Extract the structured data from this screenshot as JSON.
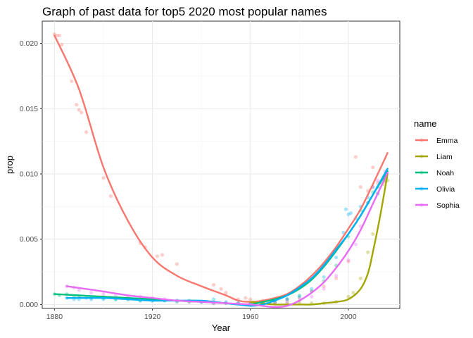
{
  "chart_data": {
    "type": "scatter",
    "title": "Graph of past data for top5 2020 most popular names",
    "xlabel": "Year",
    "ylabel": "prop",
    "xlim": [
      1875,
      2021
    ],
    "ylim": [
      -0.0003,
      0.0217
    ],
    "x_ticks": [
      1880,
      1920,
      1960,
      2000
    ],
    "y_ticks": [
      0.0,
      0.005,
      0.01,
      0.015,
      0.02
    ],
    "y_tick_labels": [
      "0.000",
      "0.005",
      "0.010",
      "0.015",
      "0.020"
    ],
    "grid": true,
    "legend_title": "name",
    "legend_position": "right",
    "series": [
      {
        "name": "Emma",
        "color": "#F8766D",
        "points": [
          [
            1880,
            0.0207
          ],
          [
            1881,
            0.0206
          ],
          [
            1882,
            0.0206
          ],
          [
            1883,
            0.0199
          ],
          [
            1887,
            0.0171
          ],
          [
            1889,
            0.0153
          ],
          [
            1890,
            0.0149
          ],
          [
            1891,
            0.0147
          ],
          [
            1893,
            0.0132
          ],
          [
            1900,
            0.0097
          ],
          [
            1903,
            0.0083
          ],
          [
            1915,
            0.0047
          ],
          [
            1917,
            0.0044
          ],
          [
            1922,
            0.0037
          ],
          [
            1924,
            0.0038
          ],
          [
            1930,
            0.0031
          ],
          [
            1945,
            0.0015
          ],
          [
            1948,
            0.0012
          ],
          [
            1950,
            0.0009
          ],
          [
            1955,
            0.0004
          ],
          [
            1958,
            0.0005
          ],
          [
            1960,
            0.0004
          ],
          [
            1965,
            0.0003
          ],
          [
            1970,
            0.0003
          ],
          [
            1975,
            0.0004
          ],
          [
            1980,
            0.0005
          ],
          [
            1985,
            0.001
          ],
          [
            1990,
            0.0014
          ],
          [
            1995,
            0.002
          ],
          [
            2000,
            0.0033
          ],
          [
            2003,
            0.0113
          ],
          [
            2005,
            0.009
          ],
          [
            2008,
            0.0087
          ],
          [
            2010,
            0.0105
          ],
          [
            2012,
            0.0093
          ],
          [
            2015,
            0.0094
          ]
        ],
        "trend": [
          [
            1880,
            0.0206
          ],
          [
            1890,
            0.0165
          ],
          [
            1900,
            0.0105
          ],
          [
            1910,
            0.0064
          ],
          [
            1920,
            0.0036
          ],
          [
            1930,
            0.0022
          ],
          [
            1940,
            0.0014
          ],
          [
            1950,
            0.0007
          ],
          [
            1955,
            0.0003
          ],
          [
            1960,
            0.0002
          ],
          [
            1965,
            0.0003
          ],
          [
            1970,
            0.0005
          ],
          [
            1975,
            0.0008
          ],
          [
            1980,
            0.0014
          ],
          [
            1985,
            0.0022
          ],
          [
            1990,
            0.0032
          ],
          [
            1995,
            0.0044
          ],
          [
            2000,
            0.0058
          ],
          [
            2005,
            0.0073
          ],
          [
            2010,
            0.0092
          ],
          [
            2016,
            0.0116
          ]
        ]
      },
      {
        "name": "Liam",
        "color": "#A3A500",
        "points": [
          [
            1965,
            0.0001
          ],
          [
            1967,
            0.0001
          ],
          [
            1970,
            0.0001
          ],
          [
            1975,
            0.0001
          ],
          [
            1980,
            0.0001
          ],
          [
            1985,
            0.0001
          ],
          [
            1990,
            0.0001
          ],
          [
            1995,
            0.0002
          ],
          [
            2000,
            0.0006
          ],
          [
            2002,
            0.0009
          ],
          [
            2005,
            0.002
          ],
          [
            2008,
            0.004
          ],
          [
            2010,
            0.0054
          ],
          [
            2012,
            0.0085
          ],
          [
            2014,
            0.0092
          ],
          [
            2015,
            0.0097
          ],
          [
            2016,
            0.0095
          ]
        ],
        "trend": [
          [
            1960,
            0.0002
          ],
          [
            1965,
            0.0001
          ],
          [
            1970,
            0.0
          ],
          [
            1975,
            0.0
          ],
          [
            1980,
            0.0
          ],
          [
            1985,
            0.0
          ],
          [
            1990,
            0.0001
          ],
          [
            1995,
            0.0002
          ],
          [
            2000,
            0.0004
          ],
          [
            2005,
            0.0012
          ],
          [
            2008,
            0.0024
          ],
          [
            2010,
            0.004
          ],
          [
            2013,
            0.0068
          ],
          [
            2016,
            0.01
          ]
        ]
      },
      {
        "name": "Noah",
        "color": "#00BF7D",
        "points": [
          [
            1880,
            0.0008
          ],
          [
            1882,
            0.0007
          ],
          [
            1885,
            0.0008
          ],
          [
            1888,
            0.0006
          ],
          [
            1890,
            0.0006
          ],
          [
            1895,
            0.0005
          ],
          [
            1900,
            0.0005
          ],
          [
            1905,
            0.0004
          ],
          [
            1910,
            0.0004
          ],
          [
            1915,
            0.0003
          ],
          [
            1920,
            0.0003
          ],
          [
            1925,
            0.0003
          ],
          [
            1930,
            0.0002
          ],
          [
            1935,
            0.0002
          ],
          [
            1940,
            0.0002
          ],
          [
            1945,
            0.0001
          ],
          [
            1950,
            0.0001
          ],
          [
            1955,
            0.0001
          ],
          [
            1960,
            0.0001
          ],
          [
            1965,
            0.0001
          ],
          [
            1970,
            0.0002
          ],
          [
            1975,
            0.0004
          ],
          [
            1980,
            0.0007
          ],
          [
            1985,
            0.001
          ],
          [
            1990,
            0.0018
          ],
          [
            1995,
            0.003
          ],
          [
            2000,
            0.0052
          ],
          [
            2005,
            0.0072
          ],
          [
            2008,
            0.0078
          ],
          [
            2010,
            0.0086
          ],
          [
            2012,
            0.009
          ],
          [
            2015,
            0.0095
          ]
        ],
        "trend": [
          [
            1880,
            0.0008
          ],
          [
            1890,
            0.0007
          ],
          [
            1900,
            0.0006
          ],
          [
            1910,
            0.0005
          ],
          [
            1920,
            0.0004
          ],
          [
            1930,
            0.0003
          ],
          [
            1940,
            0.0002
          ],
          [
            1950,
            0.0001
          ],
          [
            1955,
            0.0
          ],
          [
            1960,
            0.0
          ],
          [
            1965,
            0.0002
          ],
          [
            1970,
            0.0004
          ],
          [
            1975,
            0.0007
          ],
          [
            1980,
            0.0012
          ],
          [
            1985,
            0.0019
          ],
          [
            1990,
            0.0029
          ],
          [
            1995,
            0.0041
          ],
          [
            2000,
            0.0054
          ],
          [
            2005,
            0.0068
          ],
          [
            2010,
            0.0084
          ],
          [
            2016,
            0.0102
          ]
        ]
      },
      {
        "name": "Olivia",
        "color": "#00B0F6",
        "points": [
          [
            1885,
            0.0005
          ],
          [
            1888,
            0.0004
          ],
          [
            1890,
            0.0004
          ],
          [
            1893,
            0.0005
          ],
          [
            1895,
            0.0004
          ],
          [
            1900,
            0.0004
          ],
          [
            1905,
            0.0004
          ],
          [
            1910,
            0.0004
          ],
          [
            1915,
            0.0003
          ],
          [
            1920,
            0.0003
          ],
          [
            1925,
            0.0003
          ],
          [
            1930,
            0.0003
          ],
          [
            1935,
            0.0003
          ],
          [
            1940,
            0.0002
          ],
          [
            1945,
            0.0004
          ],
          [
            1950,
            0.0002
          ],
          [
            1955,
            0.0001
          ],
          [
            1960,
            0.0001
          ],
          [
            1965,
            0.0001
          ],
          [
            1970,
            0.0003
          ],
          [
            1975,
            0.0004
          ],
          [
            1980,
            0.0006
          ],
          [
            1985,
            0.0012
          ],
          [
            1990,
            0.0021
          ],
          [
            1995,
            0.0036
          ],
          [
            1998,
            0.0055
          ],
          [
            1999,
            0.0073
          ],
          [
            2000,
            0.0069
          ],
          [
            2001,
            0.007
          ],
          [
            2003,
            0.0066
          ],
          [
            2005,
            0.0075
          ],
          [
            2008,
            0.0082
          ],
          [
            2010,
            0.009
          ],
          [
            2012,
            0.0085
          ],
          [
            2015,
            0.0099
          ]
        ],
        "trend": [
          [
            1885,
            0.0005
          ],
          [
            1900,
            0.0005
          ],
          [
            1910,
            0.0004
          ],
          [
            1920,
            0.0003
          ],
          [
            1930,
            0.0003
          ],
          [
            1940,
            0.0003
          ],
          [
            1945,
            0.0002
          ],
          [
            1950,
            0.0001
          ],
          [
            1955,
            0.0
          ],
          [
            1960,
            -0.0001
          ],
          [
            1965,
            0.0
          ],
          [
            1970,
            0.0003
          ],
          [
            1975,
            0.0007
          ],
          [
            1980,
            0.0013
          ],
          [
            1985,
            0.002
          ],
          [
            1990,
            0.003
          ],
          [
            1995,
            0.0042
          ],
          [
            2000,
            0.0054
          ],
          [
            2005,
            0.0068
          ],
          [
            2010,
            0.0084
          ],
          [
            2016,
            0.0104
          ]
        ]
      },
      {
        "name": "Sophia",
        "color": "#E76BF3",
        "points": [
          [
            1885,
            0.0014
          ],
          [
            1888,
            0.0013
          ],
          [
            1890,
            0.0011
          ],
          [
            1895,
            0.0009
          ],
          [
            1900,
            0.0008
          ],
          [
            1905,
            0.0007
          ],
          [
            1910,
            0.0006
          ],
          [
            1915,
            0.0006
          ],
          [
            1920,
            0.0005
          ],
          [
            1925,
            0.0004
          ],
          [
            1930,
            0.0003
          ],
          [
            1935,
            0.0002
          ],
          [
            1940,
            0.0002
          ],
          [
            1945,
            0.0001
          ],
          [
            1950,
            0.0001
          ],
          [
            1955,
            0.0001
          ],
          [
            1960,
            0.0001
          ],
          [
            1965,
            0.0001
          ],
          [
            1970,
            0.0001
          ],
          [
            1975,
            0.0002
          ],
          [
            1980,
            0.0003
          ],
          [
            1985,
            0.0006
          ],
          [
            1990,
            0.0012
          ],
          [
            1995,
            0.0022
          ],
          [
            2000,
            0.0034
          ],
          [
            2003,
            0.0046
          ],
          [
            2005,
            0.006
          ],
          [
            2008,
            0.0078
          ],
          [
            2010,
            0.009
          ],
          [
            2012,
            0.0095
          ],
          [
            2015,
            0.0102
          ]
        ],
        "trend": [
          [
            1885,
            0.0014
          ],
          [
            1900,
            0.001
          ],
          [
            1910,
            0.0007
          ],
          [
            1920,
            0.0005
          ],
          [
            1930,
            0.0003
          ],
          [
            1940,
            0.0002
          ],
          [
            1950,
            0.0001
          ],
          [
            1960,
            0.0
          ],
          [
            1965,
            -0.0001
          ],
          [
            1970,
            -0.0002
          ],
          [
            1975,
            -0.0001
          ],
          [
            1980,
            0.0003
          ],
          [
            1985,
            0.0009
          ],
          [
            1990,
            0.0017
          ],
          [
            1995,
            0.0028
          ],
          [
            2000,
            0.0041
          ],
          [
            2005,
            0.0057
          ],
          [
            2010,
            0.0077
          ],
          [
            2016,
            0.0101
          ]
        ]
      }
    ]
  }
}
